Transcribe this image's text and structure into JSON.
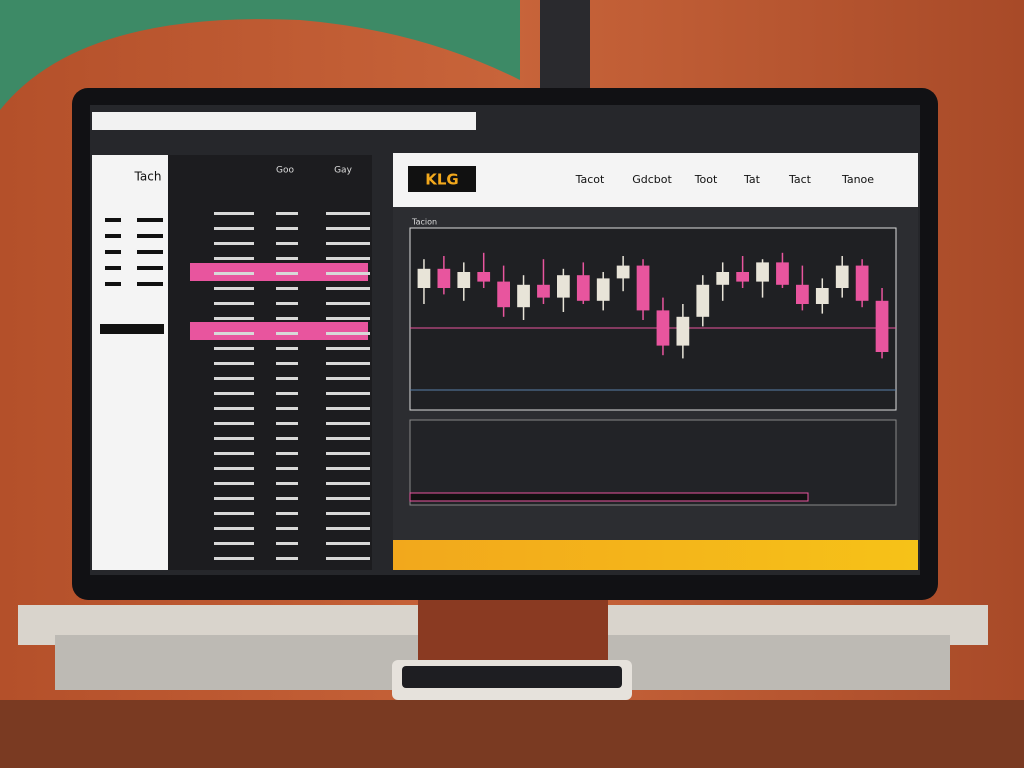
{
  "screen": {
    "left_panel": {
      "title": "Tach"
    },
    "list": {
      "headers": [
        "Goo",
        "Gay"
      ]
    },
    "header": {
      "logo": "KLG",
      "nav": [
        "Tacot",
        "Gdcbot",
        "Toot",
        "Tat",
        "Tact",
        "Tanoe"
      ]
    },
    "chart": {
      "label": "Tacion",
      "ylim": [
        0,
        100
      ],
      "candles": [
        {
          "o": 70,
          "h": 88,
          "l": 60,
          "c": 82
        },
        {
          "o": 82,
          "h": 90,
          "l": 66,
          "c": 70
        },
        {
          "o": 70,
          "h": 86,
          "l": 62,
          "c": 80
        },
        {
          "o": 80,
          "h": 92,
          "l": 70,
          "c": 74
        },
        {
          "o": 74,
          "h": 84,
          "l": 52,
          "c": 58
        },
        {
          "o": 58,
          "h": 78,
          "l": 50,
          "c": 72
        },
        {
          "o": 72,
          "h": 88,
          "l": 60,
          "c": 64
        },
        {
          "o": 64,
          "h": 82,
          "l": 55,
          "c": 78
        },
        {
          "o": 78,
          "h": 86,
          "l": 60,
          "c": 62
        },
        {
          "o": 62,
          "h": 80,
          "l": 56,
          "c": 76
        },
        {
          "o": 76,
          "h": 90,
          "l": 68,
          "c": 84
        },
        {
          "o": 84,
          "h": 88,
          "l": 50,
          "c": 56
        },
        {
          "o": 56,
          "h": 64,
          "l": 28,
          "c": 34
        },
        {
          "o": 34,
          "h": 60,
          "l": 26,
          "c": 52
        },
        {
          "o": 52,
          "h": 78,
          "l": 46,
          "c": 72
        },
        {
          "o": 72,
          "h": 86,
          "l": 62,
          "c": 80
        },
        {
          "o": 80,
          "h": 90,
          "l": 70,
          "c": 74
        },
        {
          "o": 74,
          "h": 88,
          "l": 64,
          "c": 86
        },
        {
          "o": 86,
          "h": 92,
          "l": 70,
          "c": 72
        },
        {
          "o": 72,
          "h": 84,
          "l": 56,
          "c": 60
        },
        {
          "o": 60,
          "h": 76,
          "l": 54,
          "c": 70
        },
        {
          "o": 70,
          "h": 90,
          "l": 64,
          "c": 84
        },
        {
          "o": 84,
          "h": 88,
          "l": 58,
          "c": 62
        },
        {
          "o": 62,
          "h": 70,
          "l": 26,
          "c": 30
        }
      ]
    }
  }
}
